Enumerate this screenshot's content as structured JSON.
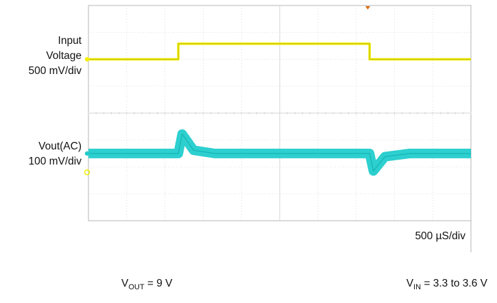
{
  "chart_data": {
    "type": "line",
    "instrument": "oscilloscope",
    "grid": true,
    "time_scale": "500 µS/div",
    "channels": [
      {
        "name_lines": [
          "Input",
          "Voltage"
        ],
        "scale": "500 mV/div",
        "color": "#f2ee00",
        "marker": "1",
        "x_div": [
          0,
          2.35,
          2.35,
          7.35,
          7.35,
          10
        ],
        "y_div_from_center": [
          2.0,
          2.0,
          2.58,
          2.58,
          2.0,
          2.0
        ],
        "description": "step from 3.3 V to 3.6 V and back"
      },
      {
        "name_lines": [
          "Vout(AC)"
        ],
        "scale": "100 mV/div",
        "color": "#22cccc",
        "marker": "2",
        "x_div": [
          0,
          2.35,
          2.45,
          2.75,
          3.3,
          7.35,
          7.45,
          7.75,
          8.4,
          10
        ],
        "y_div_from_center": [
          -1.5,
          -1.5,
          -0.78,
          -1.38,
          -1.5,
          -1.5,
          -2.15,
          -1.62,
          -1.5,
          -1.5
        ],
        "description": "positive overshoot on rising input step, negative undershoot on falling step"
      }
    ],
    "conditions": {
      "vout": {
        "base": "V",
        "sub": "OUT",
        "value": " = 9 V"
      },
      "vin": {
        "base": "V",
        "sub": "IN",
        "value": " = 3.3 to 3.6 V"
      }
    },
    "colors": {
      "grid": "#d4d4d4",
      "frame": "#b5b5b5",
      "trigger": "#e06b0a",
      "yellow": "#f2ee00",
      "cyan": "#22cccc"
    }
  }
}
